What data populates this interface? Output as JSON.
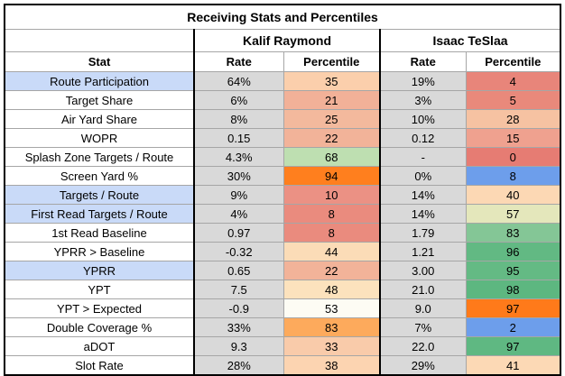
{
  "title": "Receiving Stats and Percentiles",
  "players": [
    "Kalif Raymond",
    "Isaac TeSlaa"
  ],
  "headers": {
    "stat": "Stat",
    "rate": "Rate",
    "percentile": "Percentile"
  },
  "rows": [
    {
      "stat": "Route Participation",
      "highlight": true,
      "r1": "64%",
      "p1": "35",
      "c1": "#fbcfac",
      "r2": "19%",
      "p2": "4",
      "c2": "#e8857a"
    },
    {
      "stat": "Target Share",
      "highlight": false,
      "r1": "6%",
      "p1": "21",
      "c1": "#f2b198",
      "r2": "3%",
      "p2": "5",
      "c2": "#e9897b"
    },
    {
      "stat": "Air Yard Share",
      "highlight": false,
      "r1": "8%",
      "p1": "25",
      "c1": "#f3b99d",
      "r2": "10%",
      "p2": "28",
      "c2": "#f6c2a2"
    },
    {
      "stat": "WOPR",
      "highlight": false,
      "r1": "0.15",
      "p1": "22",
      "c1": "#f2b399",
      "r2": "0.12",
      "p2": "15",
      "c2": "#efa18f"
    },
    {
      "stat": "Splash Zone Targets / Route",
      "highlight": false,
      "r1": "4.3%",
      "p1": "68",
      "c1": "#bedfb1",
      "r2": "-",
      "p2": "0",
      "c2": "#e67c73"
    },
    {
      "stat": "Screen Yard %",
      "highlight": false,
      "r1": "30%",
      "p1": "94",
      "c1": "#ff7f1e",
      "r2": "0%",
      "p2": "8",
      "c2": "#6d9eeb"
    },
    {
      "stat": "Targets / Route",
      "highlight": true,
      "r1": "9%",
      "p1": "10",
      "c1": "#eb9184",
      "r2": "14%",
      "p2": "40",
      "c2": "#fcd8b4"
    },
    {
      "stat": "First Read Targets / Route",
      "highlight": true,
      "r1": "4%",
      "p1": "8",
      "c1": "#ea8b7e",
      "r2": "14%",
      "p2": "57",
      "c2": "#e4e7bb"
    },
    {
      "stat": "1st Read Baseline",
      "highlight": false,
      "r1": "0.97",
      "p1": "8",
      "c1": "#ea8b7e",
      "r2": "1.79",
      "p2": "83",
      "c2": "#84c696"
    },
    {
      "stat": "YPRR > Baseline",
      "highlight": false,
      "r1": "-0.32",
      "p1": "44",
      "c1": "#fbdcb7",
      "r2": "1.21",
      "p2": "96",
      "c2": "#62b983"
    },
    {
      "stat": "YPRR",
      "highlight": true,
      "r1": "0.65",
      "p1": "22",
      "c1": "#f2b399",
      "r2": "3.00",
      "p2": "95",
      "c2": "#64ba84"
    },
    {
      "stat": "YPT",
      "highlight": false,
      "r1": "7.5",
      "p1": "48",
      "c1": "#fce2bd",
      "r2": "21.0",
      "p2": "98",
      "c2": "#5db780"
    },
    {
      "stat": "YPT > Expected",
      "highlight": false,
      "r1": "-0.9",
      "p1": "53",
      "c1": "#fdfcf4",
      "r2": "9.0",
      "p2": "97",
      "c2": "#ff7a1a"
    },
    {
      "stat": "Double Coverage %",
      "highlight": false,
      "r1": "33%",
      "p1": "83",
      "c1": "#fdaa5c",
      "r2": "7%",
      "p2": "2",
      "c2": "#6d9eeb"
    },
    {
      "stat": "aDOT",
      "highlight": false,
      "r1": "9.3",
      "p1": "33",
      "c1": "#f9cbaa",
      "r2": "22.0",
      "p2": "97",
      "c2": "#5fb882"
    },
    {
      "stat": "Slot Rate",
      "highlight": false,
      "r1": "28%",
      "p1": "38",
      "c1": "#fcd4b1",
      "r2": "29%",
      "p2": "41",
      "c2": "#fcd9b5"
    }
  ]
}
